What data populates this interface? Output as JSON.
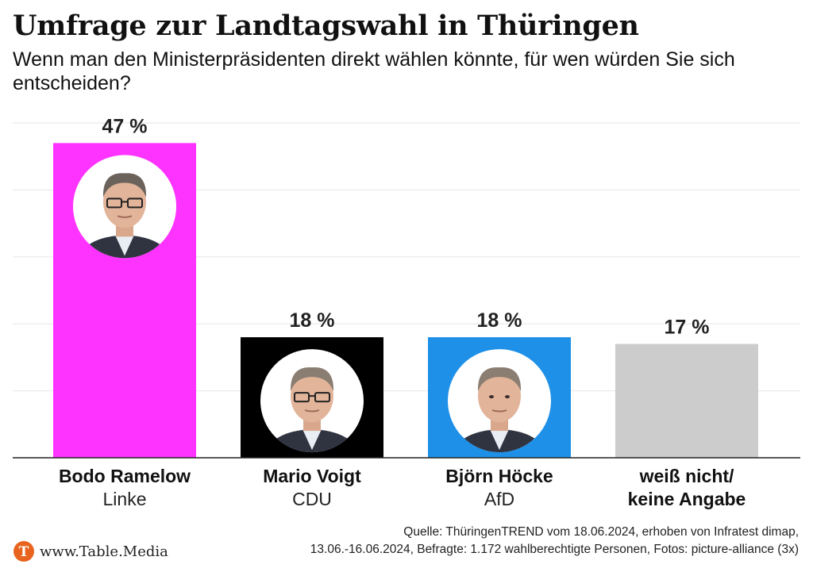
{
  "title": "Umfrage zur Landtagswahl in Thüringen",
  "subtitle": "Wenn man den Ministerpräsidenten direkt wählen könnte, für wen würden Sie sich entscheiden?",
  "chart_data": {
    "type": "bar",
    "value_suffix": " %",
    "ylim": [
      0,
      50
    ],
    "grid": true,
    "categories": [
      {
        "name": "Bodo Ramelow",
        "party": "Linke",
        "value": 47,
        "color": "#ff33ff",
        "portrait": true
      },
      {
        "name": "Mario Voigt",
        "party": "CDU",
        "value": 18,
        "color": "#000000",
        "portrait": true
      },
      {
        "name": "Björn Höcke",
        "party": "AfD",
        "value": 18,
        "color": "#1e90e8",
        "portrait": true
      },
      {
        "name": "weiß nicht/",
        "party": "keine Angabe",
        "value": 17,
        "color": "#cccccc",
        "portrait": false
      }
    ]
  },
  "brand": {
    "icon": "table-media-logo-icon",
    "icon_letter": "T",
    "text": "www.Table.Media"
  },
  "source": {
    "line1": "Quelle: ThüringenTREND vom 18.06.2024, erhoben von Infratest dimap,",
    "line2": "13.06.-16.06.2024, Befragte: 1.172 wahlberechtigte Personen, Fotos: picture-alliance (3x)"
  }
}
